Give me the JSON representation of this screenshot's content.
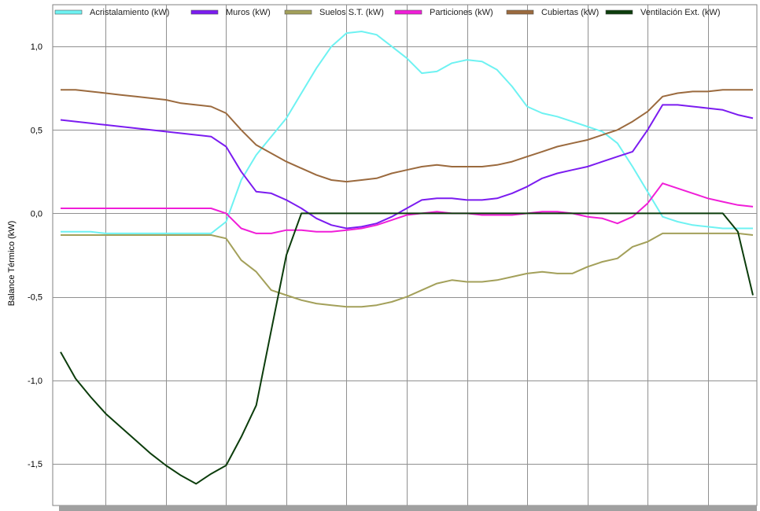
{
  "chart_data": {
    "type": "line",
    "ylabel": "Balance Térmico (kW)",
    "xlabel": "",
    "ylim": [
      -1.75,
      1.25
    ],
    "xlim": [
      0,
      23
    ],
    "yticks": [
      1.0,
      0.5,
      0.0,
      -0.5,
      -1.0,
      -1.5
    ],
    "ytick_labels": [
      "1,0",
      "0,5",
      "0,0",
      "-0,5",
      "-1,0",
      "-1,5"
    ],
    "xgrid": [
      1.5,
      3.5,
      5.5,
      7.5,
      9.5,
      11.5,
      13.5,
      15.5,
      17.5,
      19.5,
      21.5
    ],
    "grid": true,
    "legend_position": "top",
    "series": [
      {
        "name": "Acristalamiento (kW)",
        "color": "#6ef2f2",
        "x": [
          0,
          0.5,
          1,
          1.5,
          2,
          2.5,
          3,
          3.5,
          4,
          4.5,
          5,
          5.5,
          6,
          6.5,
          7,
          7.5,
          8,
          8.5,
          9,
          9.5,
          10,
          10.5,
          11,
          11.5,
          12,
          12.5,
          13,
          13.5,
          14,
          14.5,
          15,
          15.5,
          16,
          16.5,
          17,
          17.5,
          18,
          18.5,
          19,
          19.5,
          20,
          20.5,
          21,
          21.5,
          22,
          22.5,
          23
        ],
        "values": [
          -0.11,
          -0.11,
          -0.11,
          -0.12,
          -0.12,
          -0.12,
          -0.12,
          -0.12,
          -0.12,
          -0.12,
          -0.12,
          -0.05,
          0.2,
          0.35,
          0.46,
          0.57,
          0.72,
          0.87,
          1.0,
          1.08,
          1.09,
          1.07,
          1.0,
          0.93,
          0.84,
          0.85,
          0.9,
          0.92,
          0.91,
          0.86,
          0.76,
          0.64,
          0.6,
          0.58,
          0.55,
          0.52,
          0.49,
          0.42,
          0.28,
          0.13,
          -0.02,
          -0.05,
          -0.07,
          -0.08,
          -0.09,
          -0.09,
          -0.09
        ]
      },
      {
        "name": "Muros (kW)",
        "color": "#7b1cf0",
        "x": [
          0,
          0.5,
          1,
          1.5,
          2,
          2.5,
          3,
          3.5,
          4,
          4.5,
          5,
          5.5,
          6,
          6.5,
          7,
          7.5,
          8,
          8.5,
          9,
          9.5,
          10,
          10.5,
          11,
          11.5,
          12,
          12.5,
          13,
          13.5,
          14,
          14.5,
          15,
          15.5,
          16,
          16.5,
          17,
          17.5,
          18,
          18.5,
          19,
          19.5,
          20,
          20.5,
          21,
          21.5,
          22,
          22.5,
          23
        ],
        "values": [
          0.56,
          0.55,
          0.54,
          0.53,
          0.52,
          0.51,
          0.5,
          0.49,
          0.48,
          0.47,
          0.46,
          0.4,
          0.25,
          0.13,
          0.12,
          0.08,
          0.03,
          -0.03,
          -0.07,
          -0.09,
          -0.08,
          -0.06,
          -0.02,
          0.03,
          0.08,
          0.09,
          0.09,
          0.08,
          0.08,
          0.09,
          0.12,
          0.16,
          0.21,
          0.24,
          0.26,
          0.28,
          0.31,
          0.34,
          0.37,
          0.5,
          0.65,
          0.65,
          0.64,
          0.63,
          0.62,
          0.59,
          0.57
        ]
      },
      {
        "name": "Suelos S.T. (kW)",
        "color": "#a3a05a",
        "x": [
          0,
          0.5,
          1,
          1.5,
          2,
          2.5,
          3,
          3.5,
          4,
          4.5,
          5,
          5.5,
          6,
          6.5,
          7,
          7.5,
          8,
          8.5,
          9,
          9.5,
          10,
          10.5,
          11,
          11.5,
          12,
          12.5,
          13,
          13.5,
          14,
          14.5,
          15,
          15.5,
          16,
          16.5,
          17,
          17.5,
          18,
          18.5,
          19,
          19.5,
          20,
          20.5,
          21,
          21.5,
          22,
          22.5,
          23
        ],
        "values": [
          -0.13,
          -0.13,
          -0.13,
          -0.13,
          -0.13,
          -0.13,
          -0.13,
          -0.13,
          -0.13,
          -0.13,
          -0.13,
          -0.15,
          -0.28,
          -0.35,
          -0.46,
          -0.49,
          -0.52,
          -0.54,
          -0.55,
          -0.56,
          -0.56,
          -0.55,
          -0.53,
          -0.5,
          -0.46,
          -0.42,
          -0.4,
          -0.41,
          -0.41,
          -0.4,
          -0.38,
          -0.36,
          -0.35,
          -0.36,
          -0.36,
          -0.32,
          -0.29,
          -0.27,
          -0.2,
          -0.17,
          -0.12,
          -0.12,
          -0.12,
          -0.12,
          -0.12,
          -0.12,
          -0.13
        ]
      },
      {
        "name": "Particiones (kW)",
        "color": "#f01ed8",
        "x": [
          0,
          0.5,
          1,
          1.5,
          2,
          2.5,
          3,
          3.5,
          4,
          4.5,
          5,
          5.5,
          6,
          6.5,
          7,
          7.5,
          8,
          8.5,
          9,
          9.5,
          10,
          10.5,
          11,
          11.5,
          12,
          12.5,
          13,
          13.5,
          14,
          14.5,
          15,
          15.5,
          16,
          16.5,
          17,
          17.5,
          18,
          18.5,
          19,
          19.5,
          20,
          20.5,
          21,
          21.5,
          22,
          22.5,
          23
        ],
        "values": [
          0.03,
          0.03,
          0.03,
          0.03,
          0.03,
          0.03,
          0.03,
          0.03,
          0.03,
          0.03,
          0.03,
          0.0,
          -0.09,
          -0.12,
          -0.12,
          -0.1,
          -0.1,
          -0.11,
          -0.11,
          -0.1,
          -0.09,
          -0.07,
          -0.04,
          -0.01,
          0.0,
          0.01,
          0.0,
          0.0,
          -0.01,
          -0.01,
          -0.01,
          0.0,
          0.01,
          0.01,
          0.0,
          -0.02,
          -0.03,
          -0.06,
          -0.02,
          0.06,
          0.18,
          0.15,
          0.12,
          0.09,
          0.07,
          0.05,
          0.04
        ]
      },
      {
        "name": "Cubiertas (kW)",
        "color": "#9b6a3e",
        "x": [
          0,
          0.5,
          1,
          1.5,
          2,
          2.5,
          3,
          3.5,
          4,
          4.5,
          5,
          5.5,
          6,
          6.5,
          7,
          7.5,
          8,
          8.5,
          9,
          9.5,
          10,
          10.5,
          11,
          11.5,
          12,
          12.5,
          13,
          13.5,
          14,
          14.5,
          15,
          15.5,
          16,
          16.5,
          17,
          17.5,
          18,
          18.5,
          19,
          19.5,
          20,
          20.5,
          21,
          21.5,
          22,
          22.5,
          23
        ],
        "values": [
          0.74,
          0.74,
          0.73,
          0.72,
          0.71,
          0.7,
          0.69,
          0.68,
          0.66,
          0.65,
          0.64,
          0.6,
          0.5,
          0.41,
          0.36,
          0.31,
          0.27,
          0.23,
          0.2,
          0.19,
          0.2,
          0.21,
          0.24,
          0.26,
          0.28,
          0.29,
          0.28,
          0.28,
          0.28,
          0.29,
          0.31,
          0.34,
          0.37,
          0.4,
          0.42,
          0.44,
          0.47,
          0.5,
          0.55,
          0.61,
          0.7,
          0.72,
          0.73,
          0.73,
          0.74,
          0.74,
          0.74
        ]
      },
      {
        "name": "Ventilación Ext. (kW)",
        "color": "#0c3d0c",
        "x": [
          0,
          0.5,
          1,
          1.5,
          2,
          2.5,
          3,
          3.5,
          4,
          4.5,
          5,
          5.5,
          6,
          6.5,
          7,
          7.5,
          8,
          8.5,
          9,
          9.5,
          10,
          10.5,
          11,
          11.5,
          12,
          12.5,
          13,
          13.5,
          14,
          14.5,
          15,
          15.5,
          16,
          16.5,
          17,
          17.5,
          18,
          18.5,
          19,
          19.5,
          20,
          20.5,
          21,
          21.5,
          22,
          22.5,
          23
        ],
        "values": [
          -0.83,
          -0.99,
          -1.1,
          -1.2,
          -1.28,
          -1.36,
          -1.44,
          -1.51,
          -1.57,
          -1.62,
          -1.56,
          -1.51,
          -1.34,
          -1.15,
          -0.7,
          -0.25,
          0.0,
          0.0,
          0.0,
          0.0,
          0.0,
          0.0,
          0.0,
          0.0,
          0.0,
          0.0,
          0.0,
          0.0,
          0.0,
          0.0,
          0.0,
          0.0,
          0.0,
          0.0,
          0.0,
          0.0,
          0.0,
          0.0,
          0.0,
          0.0,
          0.0,
          0.0,
          0.0,
          0.0,
          0.0,
          -0.11,
          -0.49
        ]
      }
    ]
  }
}
